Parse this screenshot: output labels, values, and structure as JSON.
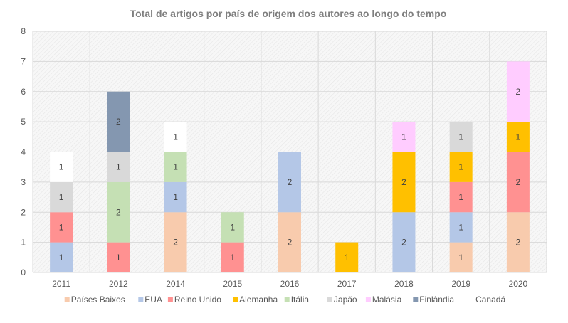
{
  "chart_data": {
    "type": "bar",
    "stacked": true,
    "title": "Total de artigos por país de origem dos autores ao longo do tempo",
    "xlabel": "",
    "ylabel": "",
    "ylim": [
      0,
      8
    ],
    "yticks": [
      0,
      1,
      2,
      3,
      4,
      5,
      6,
      7,
      8
    ],
    "grid": true,
    "legend_position": "bottom",
    "categories": [
      "2011",
      "2012",
      "2014",
      "2015",
      "2016",
      "2017",
      "2018",
      "2019",
      "2020"
    ],
    "series": [
      {
        "name": "Países Baixos",
        "color": "#f8cbad",
        "values": [
          0,
          0,
          2,
          0,
          2,
          0,
          0,
          1,
          2
        ]
      },
      {
        "name": "EUA",
        "color": "#b4c7e7",
        "values": [
          1,
          0,
          1,
          0,
          2,
          0,
          2,
          1,
          0
        ]
      },
      {
        "name": "Reino Unido",
        "color": "#ff9191",
        "values": [
          1,
          1,
          0,
          1,
          0,
          0,
          0,
          1,
          2
        ]
      },
      {
        "name": "Alemanha",
        "color": "#ffc000",
        "values": [
          0,
          0,
          0,
          0,
          0,
          1,
          2,
          1,
          1
        ]
      },
      {
        "name": "Itália",
        "color": "#c5e0b4",
        "values": [
          0,
          2,
          1,
          1,
          0,
          0,
          0,
          0,
          0
        ]
      },
      {
        "name": "Japão",
        "color": "#d9d9d9",
        "values": [
          1,
          1,
          0,
          0,
          0,
          0,
          0,
          1,
          0
        ]
      },
      {
        "name": "Malásia",
        "color": "#ffccff",
        "values": [
          0,
          0,
          0,
          0,
          0,
          0,
          1,
          0,
          2
        ]
      },
      {
        "name": "Finlândia",
        "color": "#8497b0",
        "values": [
          0,
          2,
          0,
          0,
          0,
          0,
          0,
          0,
          0
        ]
      },
      {
        "name": "Canadá",
        "color": "#ffffff",
        "values": [
          1,
          0,
          1,
          0,
          0,
          0,
          0,
          0,
          0
        ]
      }
    ]
  }
}
